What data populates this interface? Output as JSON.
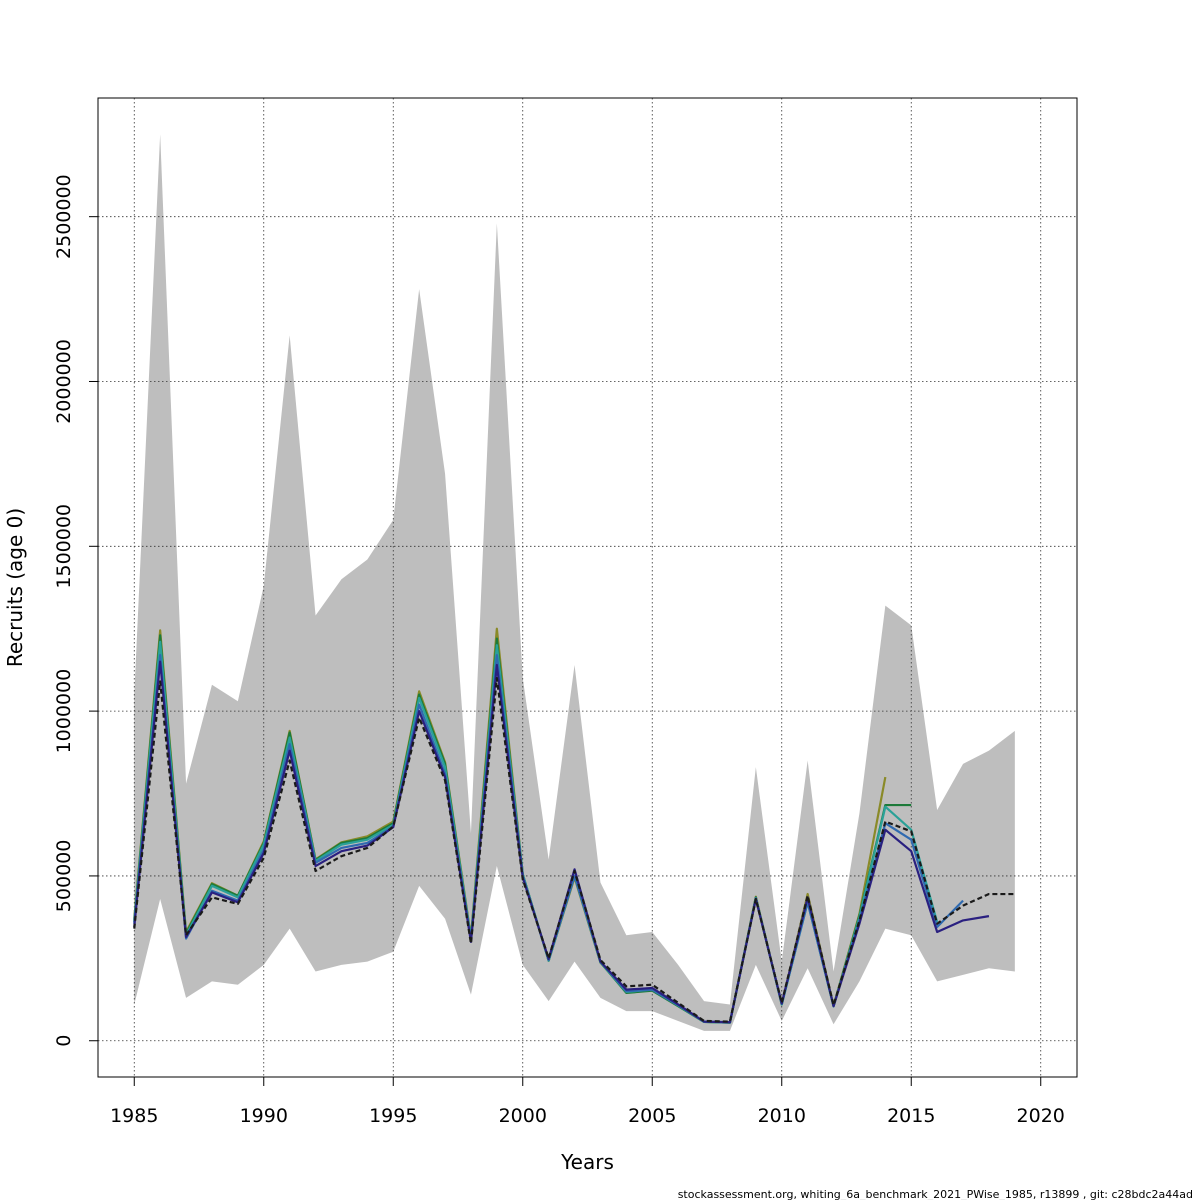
{
  "chart_data": {
    "type": "line",
    "title": "",
    "xlabel": "Years",
    "ylabel": "Recruits (age 0)",
    "xlim": [
      1983.6,
      2021.4
    ],
    "ylim": [
      -110000,
      2860000
    ],
    "xticks": [
      1985,
      1990,
      1995,
      2000,
      2005,
      2010,
      2015,
      2020
    ],
    "yticks": [
      0,
      500000,
      1000000,
      1500000,
      2000000,
      2500000
    ],
    "ytick_labels": [
      "0",
      "500000",
      "1000000",
      "1500000",
      "2000000",
      "2500000"
    ],
    "grid": true,
    "legend": "none",
    "band_color": "#bebebe",
    "confidence_band": {
      "x": [
        1985,
        1986,
        1987,
        1988,
        1989,
        1990,
        1991,
        1992,
        1993,
        1994,
        1995,
        1996,
        1997,
        1998,
        1999,
        2000,
        2001,
        2002,
        2003,
        2004,
        2005,
        2006,
        2007,
        2008,
        2009,
        2010,
        2011,
        2012,
        2013,
        2014,
        2015,
        2016,
        2017,
        2018,
        2019
      ],
      "upper": [
        1050000,
        2750000,
        780000,
        1080000,
        1030000,
        1380000,
        2140000,
        1290000,
        1400000,
        1460000,
        1580000,
        2280000,
        1720000,
        630000,
        2480000,
        1100000,
        550000,
        1140000,
        480000,
        320000,
        330000,
        230000,
        120000,
        110000,
        830000,
        240000,
        850000,
        210000,
        690000,
        1320000,
        1260000,
        700000,
        840000,
        880000,
        940000
      ],
      "lower": [
        110000,
        430000,
        130000,
        180000,
        170000,
        230000,
        340000,
        210000,
        230000,
        240000,
        270000,
        470000,
        370000,
        140000,
        530000,
        230000,
        120000,
        240000,
        130000,
        90000,
        90000,
        60000,
        30000,
        30000,
        230000,
        60000,
        220000,
        50000,
        180000,
        340000,
        320000,
        180000,
        200000,
        220000,
        210000
      ]
    },
    "series": [
      {
        "color": "#1a1a1a",
        "dashed": true,
        "x": [
          1985,
          1986,
          1987,
          1988,
          1989,
          1990,
          1991,
          1992,
          1993,
          1994,
          1995,
          1996,
          1997,
          1998,
          1999,
          2000,
          2001,
          2002,
          2003,
          2004,
          2005,
          2006,
          2007,
          2008,
          2009,
          2010,
          2011,
          2012,
          2013,
          2014,
          2015,
          2016,
          2017,
          2018,
          2019
        ],
        "values": [
          340000,
          1090000,
          320000,
          435000,
          415000,
          555000,
          850000,
          515000,
          560000,
          585000,
          650000,
          980000,
          790000,
          295000,
          1100000,
          490000,
          250000,
          515000,
          245000,
          165000,
          170000,
          115000,
          60000,
          58000,
          430000,
          115000,
          440000,
          108000,
          365000,
          665000,
          635000,
          355000,
          410000,
          445000,
          445000
        ]
      },
      {
        "color": "#2a2080",
        "dashed": false,
        "x": [
          1985,
          1986,
          1987,
          1988,
          1989,
          1990,
          1991,
          1992,
          1993,
          1994,
          1995,
          1996,
          1997,
          1998,
          1999,
          2000,
          2001,
          2002,
          2003,
          2004,
          2005,
          2006,
          2007,
          2008,
          2009,
          2010,
          2011,
          2012,
          2013,
          2014,
          2015,
          2016,
          2017,
          2018
        ],
        "values": [
          345000,
          1150000,
          315000,
          450000,
          420000,
          570000,
          880000,
          530000,
          575000,
          592000,
          648000,
          1000000,
          800000,
          300000,
          1140000,
          495000,
          248000,
          520000,
          240000,
          155000,
          160000,
          110000,
          58000,
          56000,
          430000,
          113000,
          435000,
          105000,
          355000,
          640000,
          575000,
          330000,
          365000,
          378000
        ]
      },
      {
        "color": "#2f6ab0",
        "dashed": false,
        "x": [
          1985,
          1986,
          1987,
          1988,
          1989,
          1990,
          1991,
          1992,
          1993,
          1994,
          1995,
          1996,
          1997,
          1998,
          1999,
          2000,
          2001,
          2002,
          2003,
          2004,
          2005,
          2006,
          2007,
          2008,
          2009,
          2010,
          2011,
          2012,
          2013,
          2014,
          2015,
          2016,
          2017
        ],
        "values": [
          355000,
          1170000,
          310000,
          455000,
          425000,
          580000,
          900000,
          540000,
          585000,
          600000,
          650000,
          1020000,
          810000,
          305000,
          1170000,
          500000,
          245000,
          500000,
          240000,
          150000,
          155000,
          108000,
          58000,
          56000,
          432000,
          112000,
          420000,
          105000,
          365000,
          660000,
          610000,
          345000,
          425000
        ]
      },
      {
        "color": "#2aa198",
        "dashed": false,
        "x": [
          1985,
          1986,
          1987,
          1988,
          1989,
          1990,
          1991,
          1992,
          1993,
          1994,
          1995,
          1996,
          1997,
          1998,
          1999,
          2000,
          2001,
          2002,
          2003,
          2004,
          2005,
          2006,
          2007,
          2008,
          2009,
          2010,
          2011,
          2012,
          2013,
          2014,
          2015,
          2016
        ],
        "values": [
          360000,
          1210000,
          320000,
          470000,
          435000,
          595000,
          920000,
          545000,
          595000,
          610000,
          655000,
          1040000,
          830000,
          310000,
          1200000,
          505000,
          243000,
          500000,
          238000,
          148000,
          155000,
          107000,
          57000,
          55000,
          433000,
          110000,
          420000,
          104000,
          375000,
          710000,
          640000,
          360000
        ]
      },
      {
        "color": "#1d7a3a",
        "dashed": false,
        "x": [
          1985,
          1986,
          1987,
          1988,
          1989,
          1990,
          1991,
          1992,
          1993,
          1994,
          1995,
          1996,
          1997,
          1998,
          1999,
          2000,
          2001,
          2002,
          2003,
          2004,
          2005,
          2006,
          2007,
          2008,
          2009,
          2010,
          2011,
          2012,
          2013,
          2014,
          2015
        ],
        "values": [
          365000,
          1230000,
          325000,
          475000,
          440000,
          600000,
          935000,
          548000,
          600000,
          615000,
          660000,
          1050000,
          840000,
          310000,
          1220000,
          505000,
          243000,
          500000,
          238000,
          145000,
          152000,
          105000,
          57000,
          55000,
          435000,
          110000,
          425000,
          105000,
          380000,
          715000,
          715000
        ]
      },
      {
        "color": "#8a8a28",
        "dashed": false,
        "x": [
          1985,
          1986,
          1987,
          1988,
          1989,
          1990,
          1991,
          1992,
          1993,
          1994,
          1995,
          1996,
          1997,
          1998,
          1999,
          2000,
          2001,
          2002,
          2003,
          2004,
          2005,
          2006,
          2007,
          2008,
          2009,
          2010,
          2011,
          2012,
          2013,
          2014
        ],
        "values": [
          370000,
          1245000,
          330000,
          478000,
          440000,
          605000,
          940000,
          550000,
          602000,
          620000,
          665000,
          1060000,
          845000,
          315000,
          1250000,
          505000,
          243000,
          495000,
          237000,
          148000,
          155000,
          106000,
          57000,
          55000,
          437000,
          110000,
          445000,
          106000,
          385000,
          800000
        ]
      }
    ]
  },
  "footer": "stockassessment.org, whiting_6a_benchmark_2021_PWise_1985, r13899 , git: c28bdc2a44ad"
}
